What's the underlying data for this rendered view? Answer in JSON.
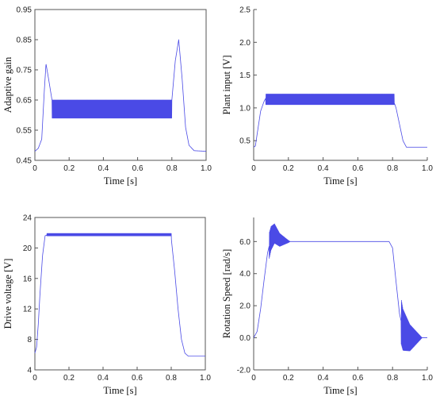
{
  "figure": {
    "background": "#ffffff",
    "line_color": "#4a4ae6",
    "frame_color": "#555555"
  },
  "chart_data": [
    {
      "type": "line",
      "xlabel": "Time [s]",
      "ylabel": "Adaptive gain",
      "xlim": [
        0,
        1.0
      ],
      "ylim": [
        0.45,
        0.95
      ],
      "xticks": [
        "0",
        "0.2",
        "0.4",
        "0.6",
        "0.8",
        "1.0"
      ],
      "yticks": [
        "0.45",
        "0.55",
        "0.65",
        "0.75",
        "0.85",
        "0.95"
      ],
      "frame": "box",
      "grid": false,
      "points": [
        [
          0,
          0.48
        ],
        [
          0.02,
          0.49
        ],
        [
          0.04,
          0.52
        ],
        [
          0.055,
          0.68
        ],
        [
          0.065,
          0.77
        ],
        [
          0.08,
          0.72
        ],
        [
          0.1,
          0.65
        ],
        [
          0.12,
          0.6
        ],
        [
          0.78,
          0.6
        ],
        [
          0.8,
          0.65
        ],
        [
          0.82,
          0.78
        ],
        [
          0.84,
          0.85
        ],
        [
          0.86,
          0.72
        ],
        [
          0.88,
          0.56
        ],
        [
          0.9,
          0.5
        ],
        [
          0.93,
          0.482
        ],
        [
          1.0,
          0.48
        ]
      ],
      "oscillation": {
        "x_start": 0.1,
        "x_end": 0.8,
        "center": 0.62,
        "amplitude": 0.03
      }
    },
    {
      "type": "line",
      "xlabel": "Time [s]",
      "ylabel": "Plant input [V]",
      "xlim": [
        0,
        1.0
      ],
      "ylim": [
        0.2,
        2.5
      ],
      "xticks": [
        "0",
        "0.2",
        "0.4",
        "0.6",
        "0.8",
        "1.0"
      ],
      "yticks": [
        "0.5",
        "1.0",
        "1.5",
        "2.0",
        "2.5"
      ],
      "frame": "left-bottom",
      "grid": false,
      "points": [
        [
          0,
          0.4
        ],
        [
          0.01,
          0.42
        ],
        [
          0.02,
          0.6
        ],
        [
          0.04,
          0.95
        ],
        [
          0.06,
          1.1
        ],
        [
          0.07,
          1.15
        ],
        [
          0.1,
          1.15
        ],
        [
          0.8,
          1.15
        ],
        [
          0.82,
          1.0
        ],
        [
          0.84,
          0.75
        ],
        [
          0.86,
          0.5
        ],
        [
          0.88,
          0.4
        ],
        [
          1.0,
          0.4
        ]
      ],
      "oscillation": {
        "x_start": 0.07,
        "x_end": 0.81,
        "center": 1.13,
        "amplitude": 0.08
      }
    },
    {
      "type": "line",
      "xlabel": "Time [s]",
      "ylabel": "Drive voltage  [V]",
      "xlim": [
        0,
        1.0
      ],
      "ylim": [
        4,
        24
      ],
      "xticks": [
        "0",
        "0.2",
        "0.4",
        "0.6",
        "0.8",
        "1.0"
      ],
      "yticks": [
        "4",
        "8",
        "12",
        "16",
        "20",
        "24"
      ],
      "frame": "box",
      "grid": false,
      "points": [
        [
          0,
          6.2
        ],
        [
          0.01,
          7
        ],
        [
          0.02,
          10
        ],
        [
          0.03,
          14
        ],
        [
          0.045,
          19
        ],
        [
          0.06,
          21.6
        ],
        [
          0.08,
          21.8
        ],
        [
          0.78,
          21.7
        ],
        [
          0.8,
          21.3
        ],
        [
          0.82,
          17
        ],
        [
          0.84,
          12
        ],
        [
          0.86,
          8
        ],
        [
          0.88,
          6.2
        ],
        [
          0.9,
          5.8
        ],
        [
          1.0,
          5.8
        ]
      ],
      "oscillation": {
        "x_start": 0.07,
        "x_end": 0.8,
        "center": 21.75,
        "amplitude": 0.15
      }
    },
    {
      "type": "line",
      "xlabel": "Time [s]",
      "ylabel": "Rotation Speed [rad/s]",
      "xlim": [
        0,
        1.0
      ],
      "ylim": [
        -2.0,
        7.5
      ],
      "xticks": [
        "0",
        "0.2",
        "0.4",
        "0.6",
        "0.8",
        "1.0"
      ],
      "yticks": [
        "-2.0",
        "0.0",
        "2.0",
        "4.0",
        "6.0"
      ],
      "frame": "left-bottom",
      "grid": false,
      "points": [
        [
          0,
          0
        ],
        [
          0.02,
          0.4
        ],
        [
          0.04,
          1.8
        ],
        [
          0.06,
          3.6
        ],
        [
          0.08,
          5.3
        ],
        [
          0.1,
          6.2
        ],
        [
          0.12,
          6.5
        ],
        [
          0.15,
          6.1
        ],
        [
          0.2,
          6.0
        ],
        [
          0.78,
          6.0
        ],
        [
          0.8,
          5.6
        ],
        [
          0.82,
          3.5
        ],
        [
          0.84,
          1.5
        ],
        [
          0.86,
          0.5
        ],
        [
          0.9,
          0
        ],
        [
          1.0,
          0
        ]
      ],
      "decay_oscillations": [
        {
          "x_start": 0.09,
          "x_end": 0.21,
          "center": 6.0,
          "amplitude": 0.8
        },
        {
          "x_start": 0.85,
          "x_end": 0.97,
          "center": 0.0,
          "amplitude": 1.4
        }
      ]
    }
  ]
}
